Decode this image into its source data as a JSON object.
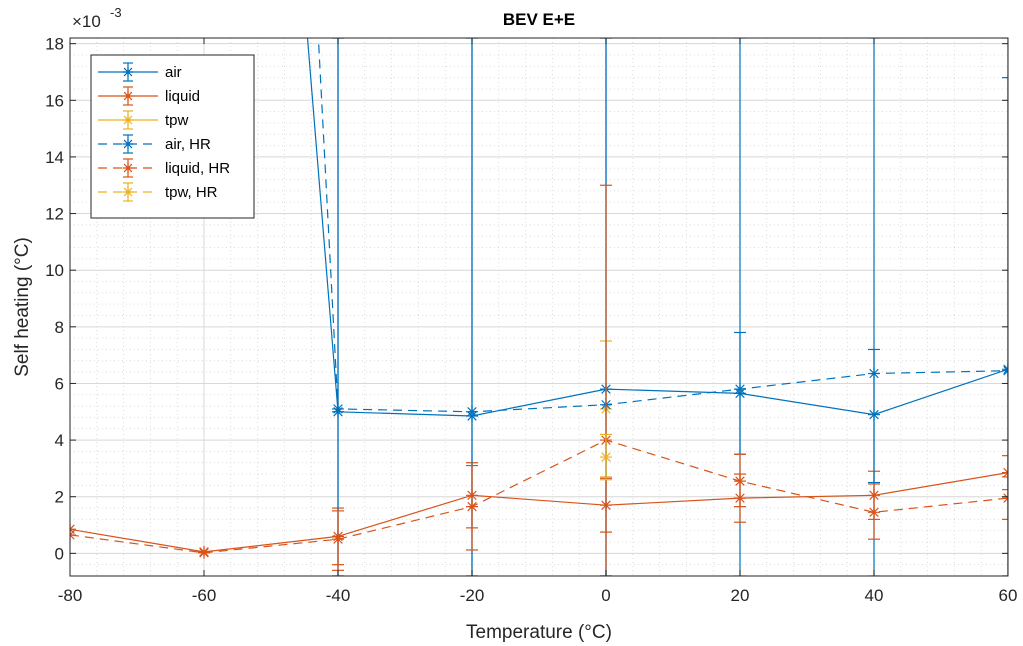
{
  "chart_data": {
    "type": "line",
    "title": "BEV E+E",
    "xlabel": "Temperature (°C)",
    "ylabel": "Self heating (°C)",
    "y_exponent_label": "×10",
    "y_exponent_power": "-3",
    "xlim": [
      -80,
      60
    ],
    "ylim": [
      -0.8,
      18.2
    ],
    "xticks": [
      -80,
      -60,
      -40,
      -20,
      0,
      20,
      40,
      60
    ],
    "xtick_labels": [
      "-80",
      "-60",
      "-40",
      "-20",
      "0",
      "20",
      "40",
      "60"
    ],
    "yticks": [
      0,
      2,
      4,
      6,
      8,
      10,
      12,
      14,
      16,
      18
    ],
    "ytick_labels": [
      "0",
      "2",
      "4",
      "6",
      "8",
      "10",
      "12",
      "14",
      "16",
      "18"
    ],
    "grid": true,
    "minor_grid": true,
    "legend_position": "top-left",
    "series": [
      {
        "name": "air",
        "color": "#0072BD",
        "dash": "solid",
        "points": [
          {
            "x": -45,
            "y": 19.5,
            "low": null,
            "high": null
          },
          {
            "x": -40,
            "y": 5.0,
            "low": -0.8,
            "high": 18.2
          },
          {
            "x": -20,
            "y": 4.85,
            "low": -0.8,
            "high": 18.2
          },
          {
            "x": 0,
            "y": 5.8,
            "low": -0.8,
            "high": 18.2
          },
          {
            "x": 20,
            "y": 5.65,
            "low": -0.8,
            "high": 18.2
          },
          {
            "x": 40,
            "y": 4.9,
            "low": -0.8,
            "high": 18.2
          },
          {
            "x": 60,
            "y": 6.5,
            "low": -0.8,
            "high": 18.2
          }
        ]
      },
      {
        "name": "liquid",
        "color": "#D95319",
        "dash": "solid",
        "points": [
          {
            "x": -80,
            "y": 0.85,
            "low": null,
            "high": null
          },
          {
            "x": -60,
            "y": 0.05,
            "low": null,
            "high": null
          },
          {
            "x": -40,
            "y": 0.6,
            "low": -0.4,
            "high": 1.6
          },
          {
            "x": -20,
            "y": 2.05,
            "low": 0.9,
            "high": 3.2
          },
          {
            "x": 0,
            "y": 1.7,
            "low": 0.75,
            "high": 2.65
          },
          {
            "x": 20,
            "y": 1.95,
            "low": 1.1,
            "high": 2.8
          },
          {
            "x": 40,
            "y": 2.05,
            "low": 1.2,
            "high": 2.9
          },
          {
            "x": 60,
            "y": 2.85,
            "low": 2.25,
            "high": 3.45
          }
        ]
      },
      {
        "name": "tpw",
        "color": "#EDB120",
        "dash": "solid",
        "points": [
          {
            "x": 0,
            "y": 5.1,
            "low": 2.7,
            "high": 7.5
          }
        ]
      },
      {
        "name": "air, HR",
        "color": "#0072BD",
        "dash": "dashed",
        "points": [
          {
            "x": -43,
            "y": 18.5,
            "low": null,
            "high": null
          },
          {
            "x": -40,
            "y": 5.1,
            "low": -0.8,
            "high": 18.2
          },
          {
            "x": -20,
            "y": 5.0,
            "low": -0.8,
            "high": 18.2
          },
          {
            "x": 0,
            "y": 5.25,
            "low": -0.8,
            "high": 18.2
          },
          {
            "x": 20,
            "y": 5.8,
            "low": 3.5,
            "high": 7.8
          },
          {
            "x": 40,
            "y": 6.35,
            "low": 2.5,
            "high": 7.2
          },
          {
            "x": 60,
            "y": 6.45,
            "low": -0.8,
            "high": 16.8
          }
        ]
      },
      {
        "name": "liquid, HR",
        "color": "#D95319",
        "dash": "dashed",
        "points": [
          {
            "x": -80,
            "y": 0.65,
            "low": null,
            "high": null
          },
          {
            "x": -60,
            "y": 0.02,
            "low": null,
            "high": null
          },
          {
            "x": -40,
            "y": 0.5,
            "low": -0.6,
            "high": 1.5
          },
          {
            "x": -20,
            "y": 1.65,
            "low": 0.12,
            "high": 3.1
          },
          {
            "x": 0,
            "y": 4.0,
            "low": -0.8,
            "high": 13.0
          },
          {
            "x": 20,
            "y": 2.55,
            "low": 1.65,
            "high": 3.5
          },
          {
            "x": 40,
            "y": 1.45,
            "low": 0.5,
            "high": 2.45
          },
          {
            "x": 60,
            "y": 1.95,
            "low": 1.2,
            "high": 2.7
          }
        ]
      },
      {
        "name": "tpw, HR",
        "color": "#EDB120",
        "dash": "dashed",
        "points": [
          {
            "x": 0,
            "y": 3.4,
            "low": 2.6,
            "high": 4.2
          }
        ]
      }
    ]
  }
}
